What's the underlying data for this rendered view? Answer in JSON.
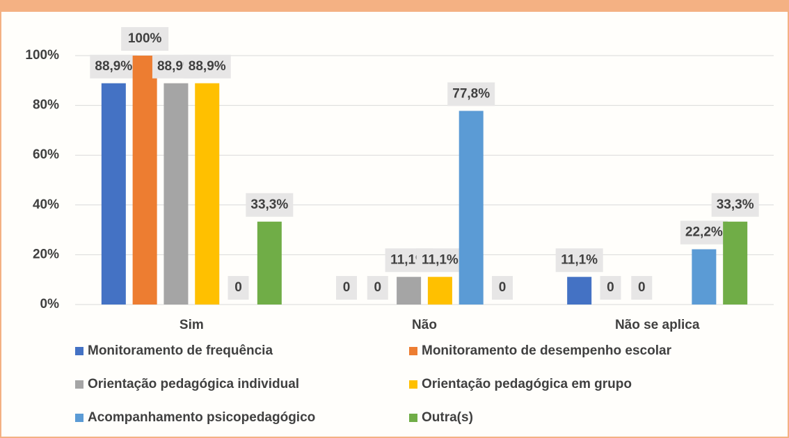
{
  "chart_data": {
    "type": "bar",
    "categories": [
      "Sim",
      "Não",
      "Não se aplica"
    ],
    "series": [
      {
        "name": "Monitoramento de frequência",
        "color": "#4472c4",
        "values": [
          88.9,
          0,
          11.1
        ],
        "value_labels": [
          "88,9%",
          "0",
          "11,1%"
        ]
      },
      {
        "name": "Monitoramento de desempenho escolar",
        "color": "#ed7d31",
        "values": [
          100,
          0,
          0
        ],
        "value_labels": [
          "100%",
          "0",
          "0"
        ]
      },
      {
        "name": "Orientação pedagógica individual",
        "color": "#a5a5a5",
        "values": [
          88.9,
          11.1,
          0
        ],
        "value_labels": [
          "88,9%",
          "11,1%",
          "0"
        ]
      },
      {
        "name": "Orientação pedagógica em grupo",
        "color": "#ffc000",
        "values": [
          88.9,
          11.1,
          null
        ],
        "value_labels": [
          "88,9%",
          "11,1%",
          null
        ]
      },
      {
        "name": "Acompanhamento psicopedagógico",
        "color": "#5b9bd5",
        "values": [
          0,
          77.8,
          22.2
        ],
        "value_labels": [
          "0",
          "77,8%",
          "22,2%"
        ]
      },
      {
        "name": "Outra(s)",
        "color": "#70ad47",
        "values": [
          33.3,
          0,
          33.3
        ],
        "value_labels": [
          "33,3%",
          "0",
          "33,3%"
        ]
      }
    ],
    "ylim": [
      0,
      100
    ],
    "yticks": [
      {
        "value": 0,
        "label": "0%"
      },
      {
        "value": 20,
        "label": "20%"
      },
      {
        "value": 40,
        "label": "40%"
      },
      {
        "value": 60,
        "label": "60%"
      },
      {
        "value": 80,
        "label": "80%"
      },
      {
        "value": 100,
        "label": "100%"
      }
    ],
    "grid": true,
    "legend": "bottom"
  }
}
